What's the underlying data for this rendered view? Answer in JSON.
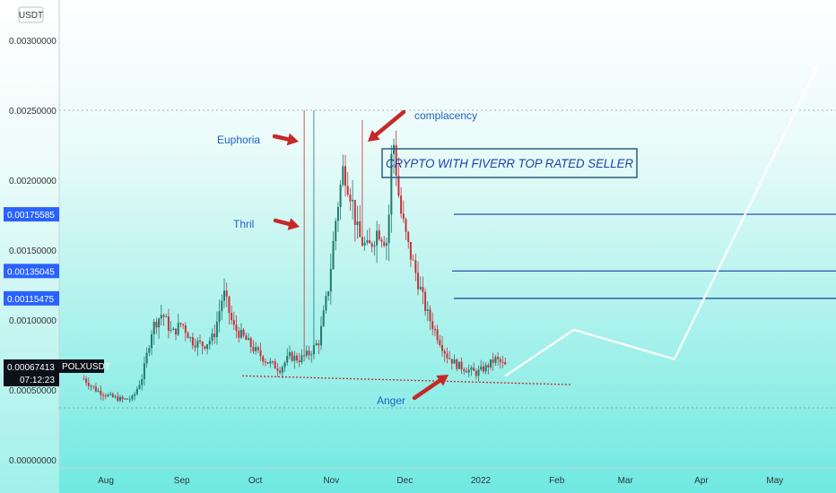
{
  "chart_data": {
    "type": "candlestick",
    "symbol": "POLXUSDT",
    "currency_label": "USDT",
    "last_price": "0.00067413",
    "countdown": "07:12:23",
    "y_ticks": [
      "0.00300000",
      "0.00250000",
      "0.00200000",
      "0.00150000",
      "0.00100000",
      "0.00050000",
      "0.00000000"
    ],
    "y_tick_values": [
      0.003,
      0.0025,
      0.002,
      0.0015,
      0.001,
      0.0005,
      0
    ],
    "ylim": [
      0,
      0.00315
    ],
    "x_ticks": [
      "Aug",
      "Sep",
      "Oct",
      "Nov",
      "Dec",
      "2022",
      "Feb",
      "Mar",
      "Apr",
      "May"
    ],
    "price_levels": [
      {
        "label": "0.00175585",
        "value": 0.00175585
      },
      {
        "label": "0.00135045",
        "value": 0.00135045
      },
      {
        "label": "0.00115475",
        "value": 0.00115475
      }
    ],
    "annotations": [
      "Euphoria",
      "complacency",
      "Thril",
      "Anger"
    ],
    "banner": "CRYPTO WITH FIVERR TOP  RATED SELLER",
    "price_path": [
      [
        "2021-07-23",
        0.00058
      ],
      [
        "2021-07-28",
        0.0005
      ],
      [
        "2021-08-03",
        0.00045
      ],
      [
        "2021-08-08",
        0.00043
      ],
      [
        "2021-08-12",
        0.00044
      ],
      [
        "2021-08-16",
        0.0006
      ],
      [
        "2021-08-20",
        0.00095
      ],
      [
        "2021-08-24",
        0.00105
      ],
      [
        "2021-08-28",
        0.0009
      ],
      [
        "2021-09-01",
        0.00098
      ],
      [
        "2021-09-05",
        0.00085
      ],
      [
        "2021-09-10",
        0.00082
      ],
      [
        "2021-09-14",
        0.00088
      ],
      [
        "2021-09-18",
        0.0012
      ],
      [
        "2021-09-22",
        0.00095
      ],
      [
        "2021-09-27",
        0.00086
      ],
      [
        "2021-10-01",
        0.00078
      ],
      [
        "2021-10-06",
        0.0007
      ],
      [
        "2021-10-11",
        0.00065
      ],
      [
        "2021-10-15",
        0.00074
      ],
      [
        "2021-10-19",
        0.00072
      ],
      [
        "2021-10-23",
        0.00076
      ],
      [
        "2021-10-27",
        0.00085
      ],
      [
        "2021-10-31",
        0.00125
      ],
      [
        "2021-11-03",
        0.00175
      ],
      [
        "2021-11-06",
        0.0021
      ],
      [
        "2021-11-09",
        0.0019
      ],
      [
        "2021-11-12",
        0.0016
      ],
      [
        "2021-11-16",
        0.0015
      ],
      [
        "2021-11-20",
        0.00165
      ],
      [
        "2021-11-24",
        0.00155
      ],
      [
        "2021-11-26",
        0.00235
      ],
      [
        "2021-11-29",
        0.0018
      ],
      [
        "2021-12-02",
        0.00155
      ],
      [
        "2021-12-06",
        0.0013
      ],
      [
        "2021-12-10",
        0.00105
      ],
      [
        "2021-12-14",
        0.0009
      ],
      [
        "2021-12-18",
        0.00075
      ],
      [
        "2021-12-22",
        0.00068
      ],
      [
        "2021-12-26",
        0.00065
      ],
      [
        "2021-12-30",
        0.00062
      ],
      [
        "2022-01-03",
        0.00066
      ],
      [
        "2022-01-07",
        0.00072
      ],
      [
        "2022-01-11",
        0.00067
      ]
    ],
    "projection": [
      [
        "2022-01-11",
        0.0006
      ],
      [
        "2022-02-08",
        0.00093
      ],
      [
        "2022-03-21",
        0.00072
      ],
      [
        "2022-05-18",
        0.0028
      ]
    ],
    "support_line": [
      [
        "2021-10-10",
        0.00062
      ],
      [
        "2022-01-22",
        0.00057
      ]
    ]
  }
}
